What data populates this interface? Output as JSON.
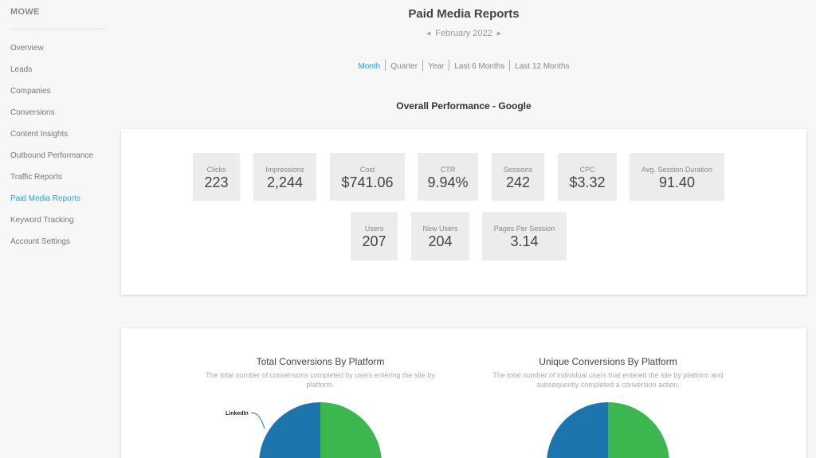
{
  "sidebar": {
    "brand": "MOWE",
    "items": [
      {
        "label": "Overview",
        "active": false
      },
      {
        "label": "Leads",
        "active": false
      },
      {
        "label": "Companies",
        "active": false
      },
      {
        "label": "Conversions",
        "active": false
      },
      {
        "label": "Content Insights",
        "active": false
      },
      {
        "label": "Outbound Performance",
        "active": false
      },
      {
        "label": "Traffic Reports",
        "active": false
      },
      {
        "label": "Paid Media Reports",
        "active": true
      },
      {
        "label": "Keyword Tracking",
        "active": false
      },
      {
        "label": "Account Settings",
        "active": false
      }
    ]
  },
  "header": {
    "title": "Paid Media Reports",
    "date": "February 2022"
  },
  "period_tabs": [
    {
      "label": "Month",
      "active": true
    },
    {
      "label": "Quarter",
      "active": false
    },
    {
      "label": "Year",
      "active": false
    },
    {
      "label": "Last 6 Months",
      "active": false
    },
    {
      "label": "Last 12 Months",
      "active": false
    }
  ],
  "performance": {
    "title": "Overall Performance - Google",
    "metrics": [
      {
        "label": "Clicks",
        "value": "223"
      },
      {
        "label": "Impressions",
        "value": "2,244"
      },
      {
        "label": "Cost",
        "value": "$741.06"
      },
      {
        "label": "CTR",
        "value": "9.94%"
      },
      {
        "label": "Sessions",
        "value": "242"
      },
      {
        "label": "CPC",
        "value": "$3.32"
      },
      {
        "label": "Avg. Session Duration",
        "value": "91.40"
      },
      {
        "label": "Users",
        "value": "207"
      },
      {
        "label": "New Users",
        "value": "204"
      },
      {
        "label": "Pages Per Session",
        "value": "3.14"
      }
    ]
  },
  "conversions": {
    "total": {
      "title": "Total Conversions By Platform",
      "subtitle": "The total number of conversions completed by users entering the site by platform.",
      "pie_label": "LinkedIn"
    },
    "unique": {
      "title": "Unique Conversions By Platform",
      "subtitle": "The total number of individual users that entered the site by platform and subsequently completed a conversion action."
    }
  },
  "colors": {
    "accent": "#2a9fd8",
    "pie_blue": "#1c75ad",
    "pie_green": "#3cb64f"
  },
  "icons": {
    "date_prev": "caret-left-icon",
    "date_next": "caret-right-icon"
  }
}
